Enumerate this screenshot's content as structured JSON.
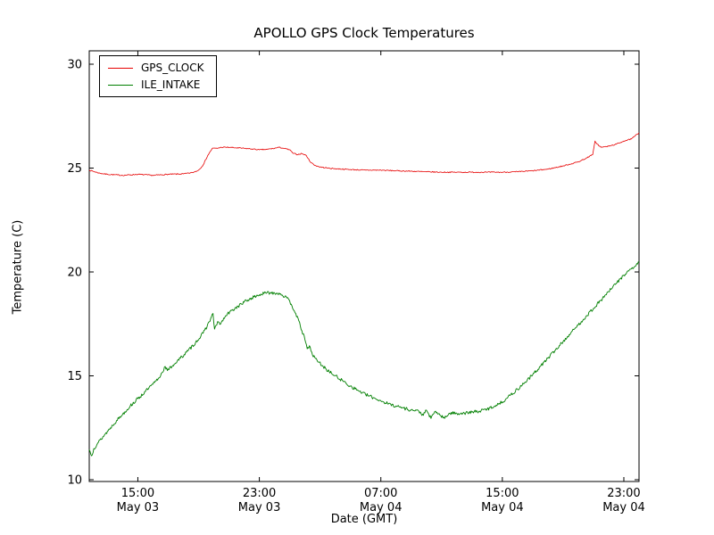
{
  "chart_data": {
    "type": "line",
    "title": "APOLLO GPS Clock Temperatures",
    "xlabel": "Date (GMT)",
    "ylabel": "Temperature (C)",
    "grid": false,
    "legend_position": "upper left",
    "x_units": "hours from 12:00 May 03 (derived from tick labels)",
    "xlim": [
      -0.2,
      36
    ],
    "ylim": [
      10,
      30
    ],
    "y_ticks": [
      10,
      15,
      20,
      25,
      30
    ],
    "x_ticks": [
      {
        "t": 3,
        "lines": [
          "15:00",
          "May 03"
        ]
      },
      {
        "t": 11,
        "lines": [
          "23:00",
          "May 03"
        ]
      },
      {
        "t": 19,
        "lines": [
          "07:00",
          "May 04"
        ]
      },
      {
        "t": 27,
        "lines": [
          "15:00",
          "May 04"
        ]
      },
      {
        "t": 35,
        "lines": [
          "23:00",
          "May 04"
        ]
      }
    ],
    "series": [
      {
        "name": "GPS_CLOCK",
        "color": "#e60000",
        "stroke_width": 0.8,
        "noise": 0.025,
        "seed": 7,
        "points": [
          [
            -0.2,
            24.9
          ],
          [
            0.5,
            24.75
          ],
          [
            1,
            24.7
          ],
          [
            2,
            24.65
          ],
          [
            3,
            24.7
          ],
          [
            4,
            24.65
          ],
          [
            5,
            24.7
          ],
          [
            6,
            24.72
          ],
          [
            6.6,
            24.78
          ],
          [
            7,
            24.9
          ],
          [
            7.3,
            25.15
          ],
          [
            7.6,
            25.6
          ],
          [
            7.9,
            25.95
          ],
          [
            8.2,
            25.95
          ],
          [
            8.5,
            26.0
          ],
          [
            9,
            26.0
          ],
          [
            9.5,
            25.97
          ],
          [
            10,
            25.95
          ],
          [
            10.5,
            25.92
          ],
          [
            11,
            25.88
          ],
          [
            11.5,
            25.9
          ],
          [
            12,
            25.95
          ],
          [
            12.3,
            26.0
          ],
          [
            12.6,
            25.95
          ],
          [
            13,
            25.88
          ],
          [
            13.2,
            25.72
          ],
          [
            13.5,
            25.65
          ],
          [
            13.8,
            25.7
          ],
          [
            14.1,
            25.6
          ],
          [
            14.3,
            25.35
          ],
          [
            14.6,
            25.15
          ],
          [
            15,
            25.05
          ],
          [
            15.5,
            25.0
          ],
          [
            16,
            24.97
          ],
          [
            17,
            24.93
          ],
          [
            18,
            24.9
          ],
          [
            19,
            24.9
          ],
          [
            20,
            24.87
          ],
          [
            21,
            24.85
          ],
          [
            22,
            24.82
          ],
          [
            23,
            24.8
          ],
          [
            24,
            24.8
          ],
          [
            25,
            24.8
          ],
          [
            26,
            24.8
          ],
          [
            27,
            24.8
          ],
          [
            28,
            24.82
          ],
          [
            29,
            24.87
          ],
          [
            30,
            24.95
          ],
          [
            31,
            25.1
          ],
          [
            32,
            25.3
          ],
          [
            32.6,
            25.5
          ],
          [
            32.95,
            25.65
          ],
          [
            33.1,
            26.3
          ],
          [
            33.25,
            26.15
          ],
          [
            33.5,
            26.0
          ],
          [
            34,
            26.05
          ],
          [
            34.5,
            26.15
          ],
          [
            35,
            26.3
          ],
          [
            35.5,
            26.4
          ],
          [
            36,
            26.7
          ]
        ]
      },
      {
        "name": "ILE_INTAKE",
        "color": "#007f00",
        "stroke_width": 0.9,
        "noise": 0.08,
        "seed": 13,
        "points": [
          [
            -0.2,
            11.45
          ],
          [
            -0.05,
            11.15
          ],
          [
            0.1,
            11.5
          ],
          [
            0.4,
            11.8
          ],
          [
            0.8,
            12.15
          ],
          [
            1.2,
            12.5
          ],
          [
            1.6,
            12.85
          ],
          [
            2,
            13.15
          ],
          [
            2.5,
            13.55
          ],
          [
            3,
            13.9
          ],
          [
            3.5,
            14.25
          ],
          [
            4,
            14.6
          ],
          [
            4.4,
            14.9
          ],
          [
            4.8,
            15.45
          ],
          [
            4.95,
            15.25
          ],
          [
            5.3,
            15.5
          ],
          [
            5.8,
            15.85
          ],
          [
            6.3,
            16.2
          ],
          [
            6.8,
            16.6
          ],
          [
            7.3,
            17.05
          ],
          [
            7.7,
            17.6
          ],
          [
            7.95,
            18.0
          ],
          [
            8.05,
            17.25
          ],
          [
            8.3,
            17.6
          ],
          [
            8.45,
            17.5
          ],
          [
            8.8,
            17.9
          ],
          [
            9.2,
            18.15
          ],
          [
            9.6,
            18.35
          ],
          [
            10,
            18.55
          ],
          [
            10.5,
            18.75
          ],
          [
            11,
            18.9
          ],
          [
            11.5,
            19.0
          ],
          [
            12,
            19.0
          ],
          [
            12.4,
            18.95
          ],
          [
            12.8,
            18.75
          ],
          [
            13.1,
            18.45
          ],
          [
            13.4,
            18.0
          ],
          [
            13.7,
            17.4
          ],
          [
            14,
            16.75
          ],
          [
            14.15,
            16.3
          ],
          [
            14.3,
            16.45
          ],
          [
            14.5,
            16.0
          ],
          [
            14.8,
            15.75
          ],
          [
            15.2,
            15.45
          ],
          [
            15.6,
            15.2
          ],
          [
            16,
            15.0
          ],
          [
            16.5,
            14.75
          ],
          [
            17,
            14.5
          ],
          [
            17.5,
            14.3
          ],
          [
            18,
            14.1
          ],
          [
            18.5,
            13.95
          ],
          [
            19,
            13.8
          ],
          [
            19.5,
            13.65
          ],
          [
            20,
            13.55
          ],
          [
            20.5,
            13.45
          ],
          [
            21,
            13.35
          ],
          [
            21.5,
            13.3
          ],
          [
            21.8,
            13.1
          ],
          [
            22,
            13.35
          ],
          [
            22.3,
            12.95
          ],
          [
            22.6,
            13.3
          ],
          [
            22.9,
            13.1
          ],
          [
            23.2,
            12.95
          ],
          [
            23.5,
            13.2
          ],
          [
            24,
            13.2
          ],
          [
            24.5,
            13.2
          ],
          [
            25,
            13.25
          ],
          [
            25.5,
            13.3
          ],
          [
            26,
            13.4
          ],
          [
            26.5,
            13.55
          ],
          [
            27,
            13.75
          ],
          [
            27.5,
            14.05
          ],
          [
            28,
            14.35
          ],
          [
            28.5,
            14.7
          ],
          [
            29,
            15.05
          ],
          [
            29.5,
            15.45
          ],
          [
            30,
            15.85
          ],
          [
            30.5,
            16.25
          ],
          [
            31,
            16.65
          ],
          [
            31.5,
            17.05
          ],
          [
            32,
            17.45
          ],
          [
            32.5,
            17.85
          ],
          [
            33,
            18.25
          ],
          [
            33.5,
            18.65
          ],
          [
            34,
            19.05
          ],
          [
            34.5,
            19.45
          ],
          [
            35,
            19.85
          ],
          [
            35.5,
            20.15
          ],
          [
            35.8,
            20.3
          ],
          [
            36,
            20.5
          ]
        ]
      }
    ]
  }
}
